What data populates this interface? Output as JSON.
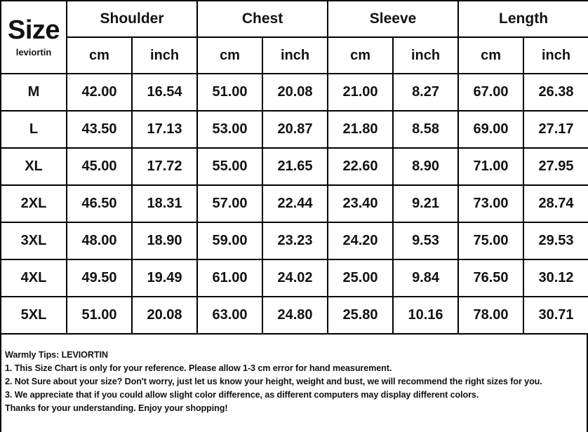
{
  "chart_data": {
    "type": "table",
    "title": "Size",
    "brand": "leviortin",
    "column_groups": [
      "Shoulder",
      "Chest",
      "Sleeve",
      "Length"
    ],
    "unit_row": [
      "cm",
      "inch",
      "cm",
      "inch",
      "cm",
      "inch",
      "cm",
      "inch"
    ],
    "columns": [
      "Size",
      "Shoulder cm",
      "Shoulder inch",
      "Chest cm",
      "Chest inch",
      "Sleeve cm",
      "Sleeve inch",
      "Length cm",
      "Length inch"
    ],
    "rows": [
      {
        "size": "M",
        "values": [
          "42.00",
          "16.54",
          "51.00",
          "20.08",
          "21.00",
          "8.27",
          "67.00",
          "26.38"
        ]
      },
      {
        "size": "L",
        "values": [
          "43.50",
          "17.13",
          "53.00",
          "20.87",
          "21.80",
          "8.58",
          "69.00",
          "27.17"
        ]
      },
      {
        "size": "XL",
        "values": [
          "45.00",
          "17.72",
          "55.00",
          "21.65",
          "22.60",
          "8.90",
          "71.00",
          "27.95"
        ]
      },
      {
        "size": "2XL",
        "values": [
          "46.50",
          "18.31",
          "57.00",
          "22.44",
          "23.40",
          "9.21",
          "73.00",
          "28.74"
        ]
      },
      {
        "size": "3XL",
        "values": [
          "48.00",
          "18.90",
          "59.00",
          "23.23",
          "24.20",
          "9.53",
          "75.00",
          "29.53"
        ]
      },
      {
        "size": "4XL",
        "values": [
          "49.50",
          "19.49",
          "61.00",
          "24.02",
          "25.00",
          "9.84",
          "76.50",
          "30.12"
        ]
      },
      {
        "size": "5XL",
        "values": [
          "51.00",
          "20.08",
          "63.00",
          "24.80",
          "25.80",
          "10.16",
          "78.00",
          "30.71"
        ]
      }
    ]
  },
  "tips": {
    "title": "Warmly Tips: LEVIORTIN",
    "lines": [
      "1. This Size Chart is only for your reference. Please allow 1-3 cm error for hand measurement.",
      "2. Not Sure about your size? Don't worry, just let us know your height, weight and bust, we will recommend the right sizes for you.",
      "3. We appreciate that if you could allow slight color difference, as different computers may display different colors.",
      "Thanks for your understanding. Enjoy your shopping!"
    ]
  },
  "colors": {
    "header_bg": "#e8e7e4",
    "border": "#000000",
    "text": "#121212",
    "row_bg": "#ffffff"
  }
}
